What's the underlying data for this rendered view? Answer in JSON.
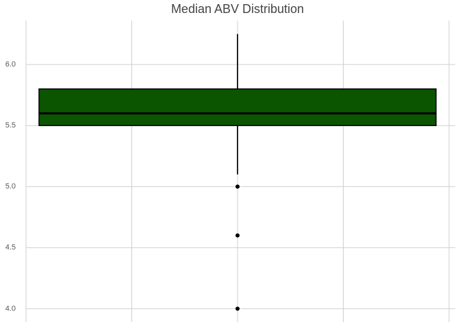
{
  "chart_data": {
    "type": "box",
    "title": "Median ABV Distribution",
    "box": {
      "q1": 5.5,
      "median": 5.6,
      "q3": 5.8,
      "whisker_low": 5.1,
      "whisker_high": 6.25,
      "outliers": [
        5.0,
        4.6,
        4.0
      ]
    },
    "color": "#0b5400",
    "ylim": [
      3.89,
      6.36
    ],
    "yticks": [
      {
        "value": 4,
        "label": "4.0"
      },
      4.5,
      {
        "value": 5,
        "label": "5.0"
      },
      5.5,
      {
        "value": 6,
        "label": "6.0"
      }
    ],
    "grid": true
  }
}
